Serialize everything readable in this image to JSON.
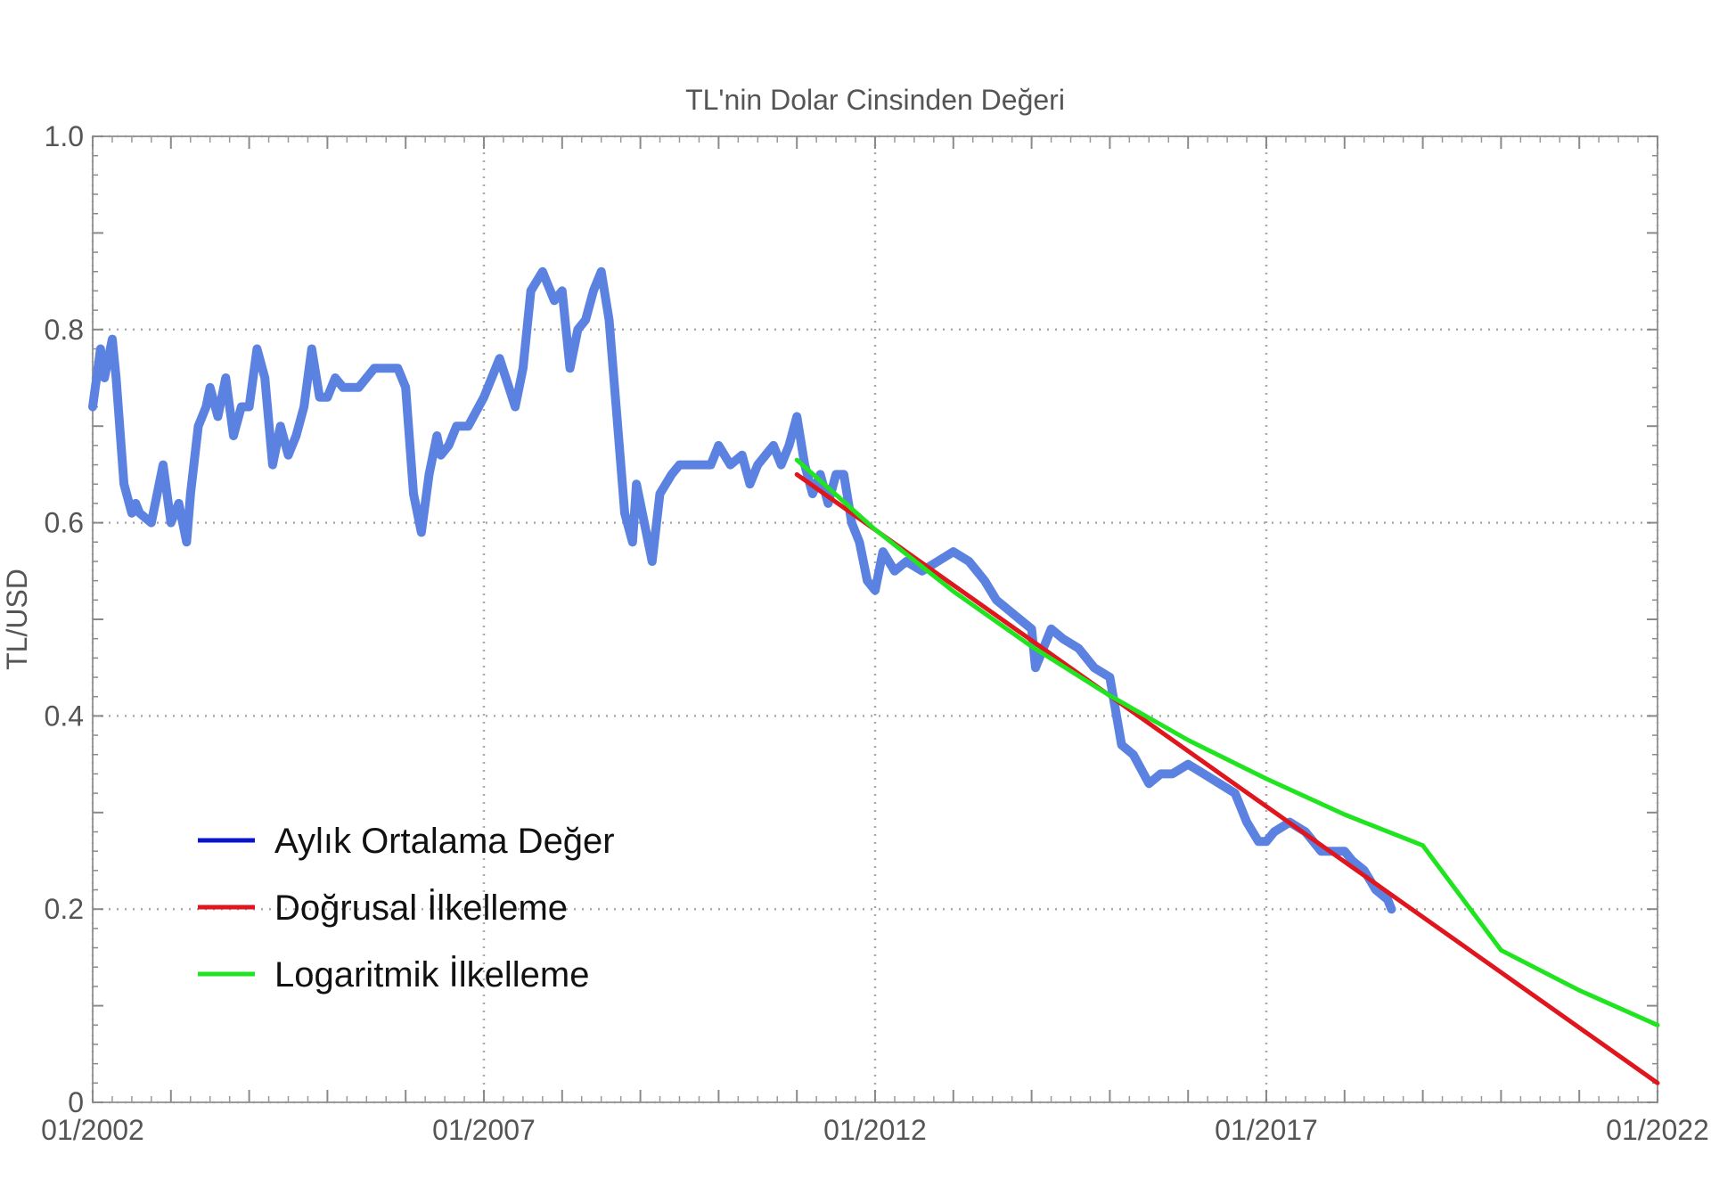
{
  "chart_data": {
    "type": "line",
    "title": "TL'nin Dolar Cinsinden Değeri",
    "xlabel": "",
    "ylabel": "TL/USD",
    "xlim": [
      2002.0,
      2022.0
    ],
    "ylim": [
      0,
      1.0
    ],
    "x_ticks": [
      {
        "value": 2002.0,
        "label": "01/2002"
      },
      {
        "value": 2007.0,
        "label": "01/2007"
      },
      {
        "value": 2012.0,
        "label": "01/2012"
      },
      {
        "value": 2017.0,
        "label": "01/2017"
      },
      {
        "value": 2022.0,
        "label": "01/2022"
      }
    ],
    "y_ticks": [
      {
        "value": 0,
        "label": "0"
      },
      {
        "value": 0.2,
        "label": "0.2"
      },
      {
        "value": 0.4,
        "label": "0.4"
      },
      {
        "value": 0.6,
        "label": "0.6"
      },
      {
        "value": 0.8,
        "label": "0.8"
      },
      {
        "value": 1.0,
        "label": "1.0"
      }
    ],
    "grid": true,
    "legend_position": "bottom-left",
    "series": [
      {
        "name": "Aylık Ortalama Değer",
        "legend_color": "#0a14c8",
        "line_color": "#5b82e0",
        "x": [
          2002.0,
          2002.1,
          2002.15,
          2002.25,
          2002.3,
          2002.4,
          2002.5,
          2002.55,
          2002.6,
          2002.75,
          2002.9,
          2003.0,
          2003.1,
          2003.2,
          2003.25,
          2003.35,
          2003.45,
          2003.5,
          2003.6,
          2003.7,
          2003.8,
          2003.9,
          2004.0,
          2004.1,
          2004.2,
          2004.3,
          2004.4,
          2004.5,
          2004.6,
          2004.7,
          2004.8,
          2004.9,
          2005.0,
          2005.1,
          2005.2,
          2005.3,
          2005.4,
          2005.5,
          2005.6,
          2005.75,
          2005.9,
          2006.0,
          2006.1,
          2006.2,
          2006.3,
          2006.4,
          2006.45,
          2006.55,
          2006.65,
          2006.8,
          2007.0,
          2007.2,
          2007.4,
          2007.5,
          2007.6,
          2007.75,
          2007.9,
          2008.0,
          2008.1,
          2008.2,
          2008.3,
          2008.4,
          2008.5,
          2008.6,
          2008.7,
          2008.8,
          2008.9,
          2008.95,
          2009.05,
          2009.15,
          2009.25,
          2009.4,
          2009.5,
          2009.7,
          2009.9,
          2010.0,
          2010.15,
          2010.3,
          2010.4,
          2010.5,
          2010.6,
          2010.7,
          2010.8,
          2010.9,
          2011.0,
          2011.1,
          2011.2,
          2011.3,
          2011.4,
          2011.5,
          2011.6,
          2011.7,
          2011.8,
          2011.9,
          2012.0,
          2012.1,
          2012.25,
          2012.4,
          2012.6,
          2012.8,
          2013.0,
          2013.2,
          2013.4,
          2013.55,
          2013.7,
          2013.85,
          2014.0,
          2014.05,
          2014.15,
          2014.25,
          2014.4,
          2014.6,
          2014.8,
          2015.0,
          2015.15,
          2015.3,
          2015.5,
          2015.65,
          2015.8,
          2016.0,
          2016.2,
          2016.4,
          2016.6,
          2016.75,
          2016.9,
          2017.0,
          2017.1,
          2017.3,
          2017.5,
          2017.7,
          2017.9,
          2018.0,
          2018.1,
          2018.25,
          2018.4,
          2018.55,
          2018.6
        ],
        "values": [
          0.72,
          0.78,
          0.75,
          0.79,
          0.75,
          0.64,
          0.61,
          0.62,
          0.61,
          0.6,
          0.66,
          0.6,
          0.62,
          0.58,
          0.63,
          0.7,
          0.72,
          0.74,
          0.71,
          0.75,
          0.69,
          0.72,
          0.72,
          0.78,
          0.75,
          0.66,
          0.7,
          0.67,
          0.69,
          0.72,
          0.78,
          0.73,
          0.73,
          0.75,
          0.74,
          0.74,
          0.74,
          0.75,
          0.76,
          0.76,
          0.76,
          0.74,
          0.63,
          0.59,
          0.65,
          0.69,
          0.67,
          0.68,
          0.7,
          0.7,
          0.73,
          0.77,
          0.72,
          0.76,
          0.84,
          0.86,
          0.83,
          0.84,
          0.76,
          0.8,
          0.81,
          0.84,
          0.86,
          0.81,
          0.71,
          0.61,
          0.58,
          0.64,
          0.6,
          0.56,
          0.63,
          0.65,
          0.66,
          0.66,
          0.66,
          0.68,
          0.66,
          0.67,
          0.64,
          0.66,
          0.67,
          0.68,
          0.66,
          0.68,
          0.71,
          0.66,
          0.63,
          0.65,
          0.62,
          0.65,
          0.65,
          0.6,
          0.58,
          0.54,
          0.53,
          0.57,
          0.55,
          0.56,
          0.55,
          0.56,
          0.57,
          0.56,
          0.54,
          0.52,
          0.51,
          0.5,
          0.49,
          0.45,
          0.47,
          0.49,
          0.48,
          0.47,
          0.45,
          0.44,
          0.37,
          0.36,
          0.33,
          0.34,
          0.34,
          0.35,
          0.34,
          0.33,
          0.32,
          0.29,
          0.27,
          0.27,
          0.28,
          0.29,
          0.28,
          0.26,
          0.26,
          0.26,
          0.25,
          0.24,
          0.22,
          0.21,
          0.2
        ]
      },
      {
        "name": "Doğrusal İlkelleme",
        "legend_color": "#e0161e",
        "line_color": "#e0161e",
        "x": [
          2011.0,
          2022.0
        ],
        "values": [
          0.65,
          0.02
        ]
      },
      {
        "name": "Logaritmik İlkelleme",
        "legend_color": "#21e421",
        "line_color": "#21e421",
        "x": [
          2011.0,
          2012.0,
          2013.0,
          2014.0,
          2015.0,
          2016.0,
          2017.0,
          2018.0,
          2019.0,
          2020.0,
          2021.0,
          2022.0
        ],
        "values": [
          0.665,
          0.593,
          0.529,
          0.472,
          0.421,
          0.375,
          0.335,
          0.298,
          0.266,
          0.1575,
          0.116,
          0.08
        ]
      }
    ]
  }
}
